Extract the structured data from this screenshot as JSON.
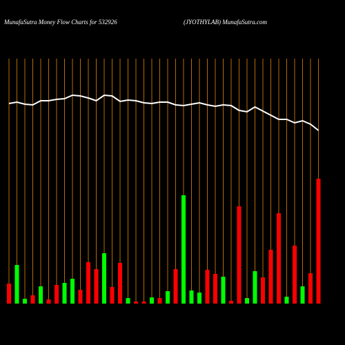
{
  "chart_data": {
    "type": "bar",
    "title": "MunafaSutra  Money Flow  Charts for 532926",
    "subtitle": "(JYOTHYLAB) MunafaSutra.com",
    "categories": [
      null,
      null,
      null,
      null,
      null,
      null,
      null,
      null,
      null,
      null,
      null,
      null,
      null,
      null,
      null,
      null,
      null,
      null,
      null,
      null,
      null,
      null,
      null,
      null,
      null,
      null,
      null,
      null,
      null,
      null,
      null,
      null,
      null,
      null,
      null,
      null,
      null,
      null,
      null,
      null
    ],
    "series": [
      {
        "type": "bar",
        "values": [
          29,
          56,
          7,
          12,
          25,
          6,
          27,
          30,
          36,
          20,
          60,
          50,
          73,
          24,
          59,
          8,
          3,
          3,
          9,
          8,
          18,
          50,
          157,
          19,
          16,
          49,
          43,
          39,
          4,
          141,
          8,
          47,
          38,
          78,
          131,
          10,
          84,
          25,
          44,
          181
        ],
        "colors": [
          "#ff0000",
          "#00ff00",
          "#00ff00",
          "#ff0000",
          "#00ff00",
          "#ff0000",
          "#ff0000",
          "#00ff00",
          "#00ff00",
          "#ff0000",
          "#ff0000",
          "#ff0000",
          "#00ff00",
          "#ff0000",
          "#ff0000",
          "#00ff00",
          "#ff0000",
          "#ff0000",
          "#00ff00",
          "#ff0000",
          "#00ff00",
          "#ff0000",
          "#00ff00",
          "#00ff00",
          "#00ff00",
          "#ff0000",
          "#ff0000",
          "#00ff00",
          "#ff0000",
          "#ff0000",
          "#00ff00",
          "#00ff00",
          "#ff0000",
          "#ff0000",
          "#ff0000",
          "#00ff00",
          "#ff0000",
          "#00ff00",
          "#ff0000",
          "#ff0000"
        ]
      },
      {
        "type": "line",
        "color": "#ffffff",
        "values": [
          290,
          292,
          289,
          288,
          294,
          294,
          296,
          297,
          302,
          301,
          298,
          294,
          302,
          301,
          293,
          295,
          294,
          291,
          290,
          292,
          292,
          288,
          287,
          289,
          291,
          288,
          286,
          288,
          287,
          280,
          278,
          285,
          279,
          273,
          267,
          267,
          262,
          265,
          260,
          251
        ]
      }
    ],
    "ylim": [
      0,
      355
    ],
    "grid_color": "#b86a00"
  }
}
